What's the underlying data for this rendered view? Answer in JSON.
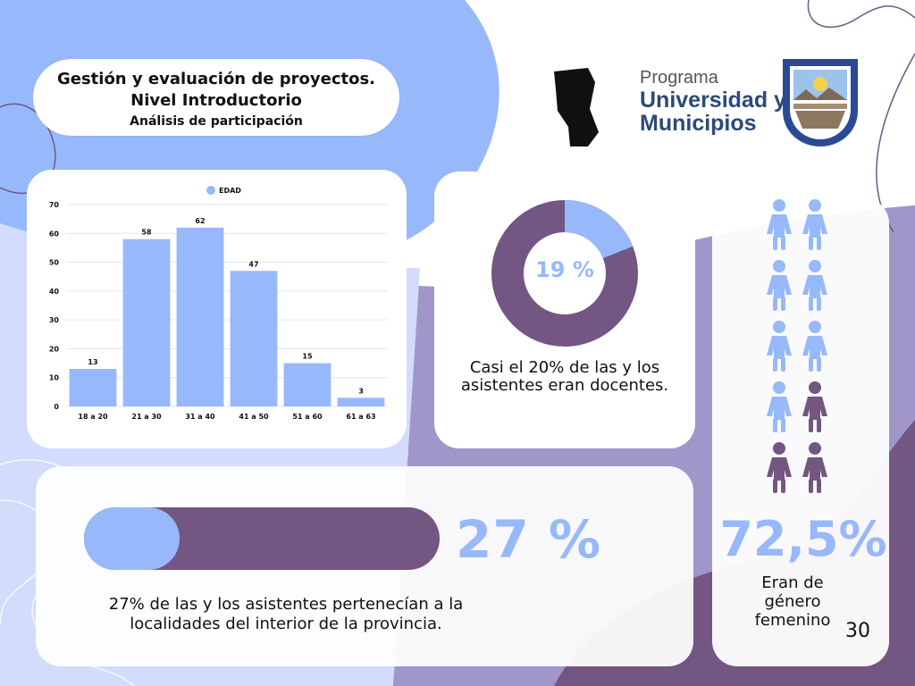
{
  "title": {
    "line1": "Gestión y evaluación de proyectos.",
    "line2": "Nivel Introductorio",
    "line3": "Análisis de participación"
  },
  "logo": {
    "line1": "Programa",
    "line2": "Universidad y",
    "line3": "Municipios"
  },
  "chart_data": {
    "type": "bar",
    "categories": [
      "18 a 20",
      "21 a 30",
      "31 a 40",
      "41 a 50",
      "51 a 60",
      "61 a 63"
    ],
    "series": [
      {
        "name": "EDAD",
        "values": [
          13,
          58,
          62,
          47,
          15,
          3
        ]
      }
    ],
    "yticks": [
      "0",
      "10",
      "20",
      "30",
      "40",
      "50",
      "60",
      "70"
    ],
    "ylim": [
      0,
      70
    ],
    "grid": true,
    "legend": "top-center",
    "bar_color": "#97b9fb"
  },
  "donut": {
    "label": "19 %",
    "value": 0.19,
    "caption": "Casi el 20% de las y los asistentes eran docentes.",
    "color_fill": "#97b9fb",
    "color_rest": "#735682"
  },
  "interior": {
    "value": 0.27,
    "label": "27 %",
    "caption": "27% de las y los asistentes pertenecían a la localidades del interior de la provincia."
  },
  "gender": {
    "label": "72,5%",
    "caption": "Eran de género femenino",
    "icons_total": 10,
    "icons_light": 7,
    "color_light": "#97b9fb",
    "color_dark": "#735682"
  },
  "page_number": "30"
}
